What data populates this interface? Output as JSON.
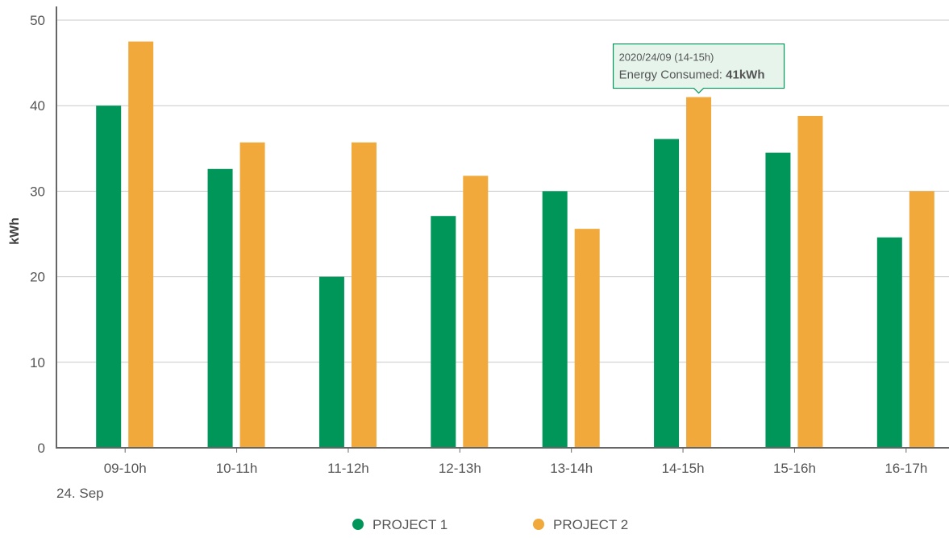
{
  "chart_data": {
    "type": "bar",
    "categories": [
      "09-10h",
      "10-11h",
      "11-12h",
      "12-13h",
      "13-14h",
      "14-15h",
      "15-16h",
      "16-17h"
    ],
    "series": [
      {
        "name": "PROJECT 1",
        "color": "#00965a",
        "values": [
          40,
          32.6,
          20,
          27.1,
          30,
          36.1,
          34.5,
          24.6
        ]
      },
      {
        "name": "PROJECT 2",
        "color": "#f0a93a",
        "values": [
          47.5,
          35.7,
          35.7,
          31.8,
          25.6,
          41,
          38.8,
          30
        ]
      }
    ],
    "ylabel": "kWh",
    "ylim": [
      0,
      50
    ],
    "yticks": [
      0,
      10,
      20,
      30,
      40,
      50
    ],
    "x_sublabel": "24. Sep",
    "grid": true,
    "legend_position": "bottom-center",
    "tooltip": {
      "category": "14-15h",
      "series": "PROJECT 2",
      "line1": "2020/24/09 (14-15h)",
      "label": "Energy Consumed: ",
      "value": "41kWh",
      "border_color": "#00965a",
      "background": "#e6f4ec"
    }
  }
}
